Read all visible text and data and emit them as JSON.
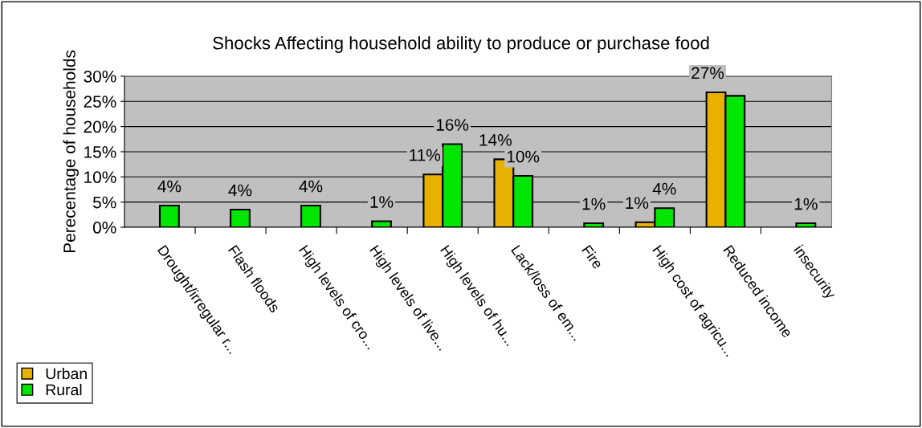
{
  "chart_data": {
    "type": "bar",
    "title": "Shocks Affecting household ability to produce or purchase food",
    "ylabel": "Perecentage of households",
    "categories": [
      "Drought/irregular r...",
      "Flash floods",
      "High levels of cro...",
      "High levels of live...",
      "High levels of hu...",
      "Lack/loss of em...",
      "Fire",
      "High cost of agricu...",
      "Reduced income",
      "insecurity"
    ],
    "series": [
      {
        "name": "Urban",
        "color": "#e8b000",
        "values": [
          null,
          null,
          null,
          null,
          10.5,
          13.5,
          null,
          1.0,
          26.8,
          null
        ],
        "value_labels": [
          null,
          null,
          null,
          null,
          "11%",
          "14%",
          null,
          "1%",
          "27%",
          null
        ]
      },
      {
        "name": "Rural",
        "color": "#00e600",
        "values": [
          4.3,
          3.5,
          4.3,
          1.2,
          16.5,
          10.2,
          0.8,
          3.8,
          26.1,
          0.8
        ],
        "value_labels": [
          "4%",
          "4%",
          "4%",
          "1%",
          "16%",
          "10%",
          "1%",
          "4%",
          null,
          "1%"
        ]
      }
    ],
    "ylim": [
      0,
      30
    ],
    "yticks": [
      {
        "value": 0,
        "label": "0%"
      },
      {
        "value": 5,
        "label": "5%"
      },
      {
        "value": 10,
        "label": "10%"
      },
      {
        "value": 15,
        "label": "15%"
      },
      {
        "value": 20,
        "label": "20%"
      },
      {
        "value": 25,
        "label": "25%"
      },
      {
        "value": 30,
        "label": "30%"
      }
    ],
    "grid": "y",
    "legend": "bottom left"
  }
}
